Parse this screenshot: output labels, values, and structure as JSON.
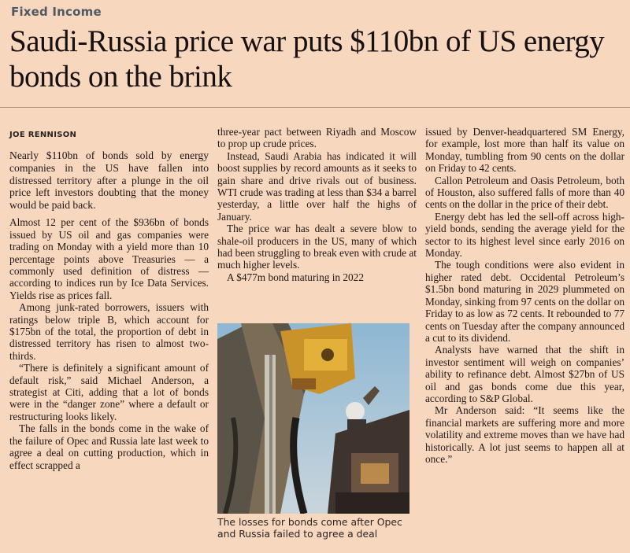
{
  "section": "Fixed Income",
  "headline": "Saudi-Russia price war puts $110bn of US energy bonds on the brink",
  "byline": "JOE RENNISON",
  "col1": [
    "Nearly $110bn of bonds sold by energy companies in the US have fallen into distressed territory after a plunge in the oil price left investors doubting that the money would be paid back.",
    "Almost 12 per cent of the $936bn of bonds issued by US oil and gas companies were trading on Monday with a yield more than 10 percentage points above Treasuries — a commonly used definition of distress — according to indices run by Ice Data Services. Yields rise as prices fall.",
    "Among junk-rated borrowers, issuers with ratings below triple B, which account for $175bn of the total, the proportion of debt in distressed territory has risen to almost two-thirds.",
    "“There is definitely a significant amount of default risk,” said Michael Anderson, a strategist at Citi, adding that a lot of bonds were in the “danger zone” where a default or restructuring looks likely.",
    "The falls in the bonds come in the wake of the failure of Opec and Russia late last week to agree a deal on cutting production, which in effect scrapped a"
  ],
  "col2": [
    "three-year pact between Riyadh and Moscow to prop up crude prices.",
    "Instead, Saudi Arabia has indicated it will boost supplies by record amounts as it seeks to gain share and drive rivals out of business. WTI crude was trading at less than $34 a barrel yesterday, a little over half the highs of January.",
    "The price war has dealt a severe blow to shale-oil producers in the US, many of which had been struggling to break even with crude at much higher levels.",
    "A $477m bond maturing in 2022"
  ],
  "col3": [
    "issued by Denver-headquartered SM Energy, for example, lost more than half its value on Monday, tumbling from 90 cents on the dollar on Friday to 42 cents.",
    "Callon Petroleum and Oasis Petroleum, both of Houston, also suffered falls of more than 40 cents on the dollar in the price of their debt.",
    "Energy debt has led the sell-off across high-yield bonds, sending the average yield for the sector to its highest level since early 2016 on Monday.",
    "The tough conditions were also evident in higher rated debt. Occidental Petroleum’s $1.5bn bond maturing in 2029 plummeted on Monday, sinking from 97 cents on the dollar on Friday to as low as 72 cents. It rebounded to 77 cents on Tuesday after the company announced a cut to its dividend.",
    "Analysts have warned that the shift in investor sentiment will weigh on companies’ ability to refinance debt. Almost $27bn of US oil and gas bonds come due this year, according to S&P Global.",
    "Mr Anderson said: “It seems like the financial markets are suffering more and more volatility and extreme moves than we have had historically. A lot just seems to happen all at once.”"
  ],
  "caption": "The losses for bonds come after Opec and Russia failed to agree a deal"
}
